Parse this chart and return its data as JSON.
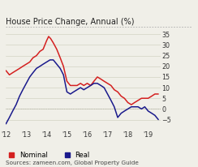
{
  "title": "House Price Change, Annual (%)",
  "source": "Sources: zameen.com, Global Property Guide",
  "xlim": [
    2012.0,
    2019.6
  ],
  "ylim": [
    -10,
    37
  ],
  "yticks": [
    -5,
    0,
    5,
    10,
    15,
    20,
    25,
    30,
    35
  ],
  "xtick_labels": [
    "'12",
    "'13",
    "'14",
    "'15",
    "'16",
    "'17",
    "'18",
    "'19"
  ],
  "xtick_positions": [
    2012,
    2013,
    2014,
    2015,
    2016,
    2017,
    2018,
    2019
  ],
  "nominal_color": "#d42020",
  "real_color": "#1a1a8c",
  "nominal_x": [
    2012.0,
    2012.17,
    2012.33,
    2012.5,
    2012.67,
    2012.83,
    2013.0,
    2013.17,
    2013.33,
    2013.5,
    2013.67,
    2013.83,
    2014.0,
    2014.1,
    2014.2,
    2014.33,
    2014.5,
    2014.67,
    2014.83,
    2015.0,
    2015.17,
    2015.33,
    2015.5,
    2015.67,
    2015.83,
    2016.0,
    2016.17,
    2016.33,
    2016.5,
    2016.67,
    2016.83,
    2017.0,
    2017.17,
    2017.33,
    2017.5,
    2017.67,
    2017.83,
    2018.0,
    2018.17,
    2018.33,
    2018.5,
    2018.67,
    2018.83,
    2019.0,
    2019.17,
    2019.33,
    2019.5
  ],
  "nominal_y": [
    18,
    16,
    17,
    18,
    19,
    20,
    21,
    22,
    24,
    25,
    27,
    28,
    32,
    34,
    33,
    31,
    28,
    24,
    20,
    13,
    11,
    11,
    11,
    12,
    11,
    12,
    11,
    13,
    15,
    14,
    13,
    12,
    11,
    9,
    8,
    6,
    5,
    3,
    2,
    3,
    4,
    5,
    5,
    5,
    6,
    7,
    7
  ],
  "real_x": [
    2012.0,
    2012.17,
    2012.33,
    2012.5,
    2012.67,
    2012.83,
    2013.0,
    2013.17,
    2013.33,
    2013.5,
    2013.67,
    2013.83,
    2014.0,
    2014.17,
    2014.33,
    2014.5,
    2014.67,
    2014.83,
    2015.0,
    2015.17,
    2015.33,
    2015.5,
    2015.67,
    2015.83,
    2016.0,
    2016.17,
    2016.33,
    2016.5,
    2016.67,
    2016.83,
    2017.0,
    2017.17,
    2017.33,
    2017.5,
    2017.67,
    2017.83,
    2018.0,
    2018.17,
    2018.33,
    2018.5,
    2018.67,
    2018.83,
    2019.0,
    2019.17,
    2019.33,
    2019.5
  ],
  "real_y": [
    -7,
    -4,
    -1,
    2,
    6,
    9,
    12,
    15,
    17,
    19,
    20,
    21,
    22,
    23,
    23,
    21,
    19,
    16,
    8,
    7,
    8,
    9,
    10,
    9,
    10,
    11,
    12,
    12,
    11,
    10,
    7,
    4,
    1,
    -4,
    -2,
    -1,
    0,
    1,
    1,
    1,
    0,
    1,
    -1,
    -2,
    -3,
    -5
  ],
  "bg_color": "#f0efe8",
  "plot_bg": "#f0efe8",
  "title_fontsize": 7.0,
  "axis_fontsize": 5.8,
  "source_fontsize": 5.2,
  "legend_fontsize": 6.0
}
